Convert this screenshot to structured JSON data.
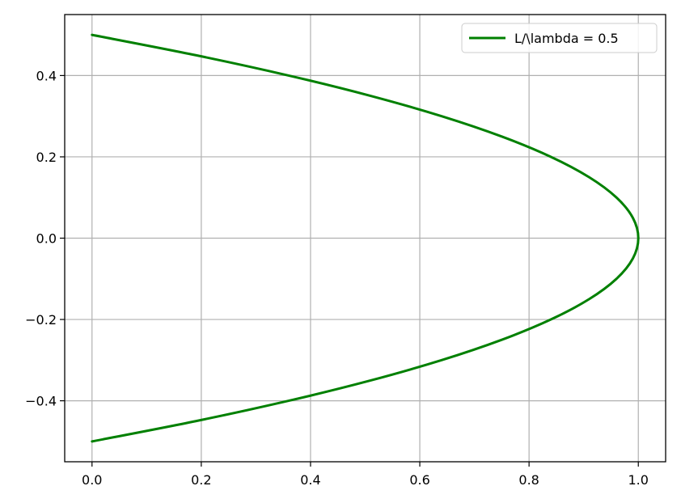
{
  "chart_data": {
    "type": "line",
    "title": "",
    "xlabel": "",
    "ylabel": "",
    "xlim": [
      -0.05,
      1.05
    ],
    "ylim": [
      -0.55,
      0.55
    ],
    "xticks": [
      0.0,
      0.2,
      0.4,
      0.6,
      0.8,
      1.0
    ],
    "yticks": [
      -0.4,
      -0.2,
      0.0,
      0.2,
      0.4
    ],
    "xtick_labels": [
      "0.0",
      "0.2",
      "0.4",
      "0.6",
      "0.8",
      "1.0"
    ],
    "ytick_labels": [
      "−0.4",
      "−0.2",
      "0.0",
      "0.2",
      "0.4"
    ],
    "grid": true,
    "legend_position": "top-right",
    "series": [
      {
        "name": "L/\\lambda = 0.5",
        "color": "#008000",
        "x": [
          0.0,
          0.19,
          0.36,
          0.51,
          0.64,
          0.75,
          0.84,
          0.91,
          0.96,
          0.99,
          1.0,
          0.99,
          0.96,
          0.91,
          0.84,
          0.75,
          0.64,
          0.51,
          0.36,
          0.19,
          0.0
        ],
        "y": [
          0.5,
          0.45,
          0.4,
          0.35,
          0.3,
          0.25,
          0.2,
          0.15,
          0.1,
          0.05,
          0.0,
          -0.05,
          -0.1,
          -0.15,
          -0.2,
          -0.25,
          -0.3,
          -0.35,
          -0.4,
          -0.45,
          -0.5
        ]
      }
    ]
  }
}
